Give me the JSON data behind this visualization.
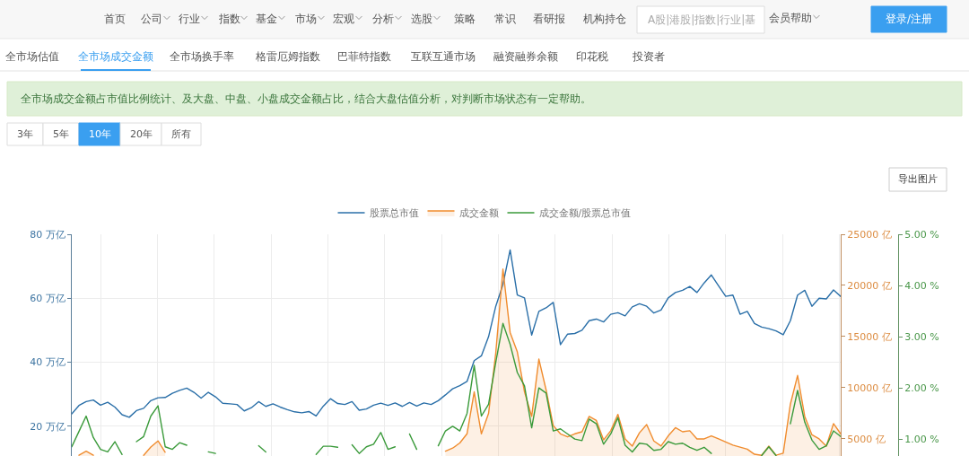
{
  "chart_data": {
    "type": "line",
    "subtitle": "全市场成交金额占市值比例统计、及大盘、中盘、小盘成交金额占比，结合大盘估值分析，对判断市场状态有一定帮助。",
    "annotations": [
      "首页",
      "公司",
      "行业",
      "指数",
      "基金",
      "市场",
      "宏观",
      "分析",
      "选股",
      "策略",
      "常识",
      "看研报",
      "机构持仓",
      "A股|港股|指数|行业|基",
      "会员帮助",
      "登录/注册",
      "全市场估值",
      "全市场成交金额",
      "全市场换手率",
      "格雷厄姆指数",
      "巴菲特指数",
      "互联互通市场",
      "融资融券余额",
      "印花税",
      "投资者",
      "3年",
      "5年",
      "10年",
      "20年",
      "所有",
      "导出图片"
    ],
    "categories": [
      null,
      null,
      null,
      null,
      null,
      null,
      null,
      null,
      null,
      null,
      null,
      null,
      null,
      null,
      null,
      null,
      null,
      null,
      null,
      null,
      null,
      null,
      null,
      null,
      null,
      null,
      null,
      null,
      null,
      null,
      null,
      null,
      null,
      null,
      null,
      null,
      null,
      null,
      null,
      null,
      null,
      null,
      null,
      null,
      null,
      null,
      null,
      null,
      null,
      null,
      null,
      null,
      null,
      null,
      null,
      null,
      null,
      null,
      null,
      null,
      null,
      null,
      null,
      null,
      null,
      null,
      null,
      null,
      null,
      null,
      null,
      null,
      null,
      null,
      null,
      null,
      null,
      null,
      null,
      null,
      null,
      null,
      null,
      null,
      null,
      null,
      null,
      null,
      null,
      null,
      null,
      null,
      null,
      null,
      null,
      null,
      null,
      null,
      null,
      null,
      null,
      null,
      null,
      null,
      null,
      null,
      null,
      null
    ],
    "series": [
      {
        "name": "股票总市值",
        "color": "#2a6fa8",
        "values": [
          23.9,
          26.5,
          27.7,
          28.2,
          26.6,
          27.5,
          26.0,
          23.6,
          22.8,
          24.9,
          25.6,
          28.0,
          28.9,
          29.0,
          30.3,
          31.2,
          31.9,
          30.6,
          28.8,
          30.6,
          29.2,
          27.2,
          27.0,
          26.8,
          24.8,
          25.8,
          27.7,
          26.2,
          27.0,
          26.0,
          25.2,
          24.5,
          24.2,
          24.6,
          23.2,
          26.3,
          28.6,
          27.1,
          26.8,
          27.7,
          25.0,
          25.4,
          26.6,
          27.2,
          26.5,
          27.3,
          26.2,
          27.4,
          26.3,
          27.3,
          26.8,
          28.0,
          29.8,
          31.7,
          32.7,
          34.0,
          40.5,
          42.0,
          48.0,
          57.5,
          64.3,
          75.1,
          61.0,
          60.1,
          48.5,
          55.9,
          57.0,
          58.7,
          45.5,
          48.8,
          49.0,
          50.0,
          53.0,
          53.5,
          52.6,
          55.0,
          55.5,
          54.5,
          57.3,
          58.3,
          57.5,
          55.4,
          56.3,
          60.1,
          61.8,
          62.5,
          63.7,
          61.8,
          64.8,
          67.3,
          63.9,
          60.6,
          61.0,
          55.0,
          55.9,
          52.1,
          51.0,
          50.5,
          49.8,
          48.6,
          53.0,
          61.0,
          62.5,
          57.5,
          60.0,
          59.8,
          62.6,
          60.6
        ]
      },
      {
        "name": "成交金额",
        "type": "area",
        "axis": "y2",
        "color": "#f08c2e",
        "values": [
          null,
          3400,
          3800,
          3400,
          null,
          null,
          null,
          null,
          null,
          null,
          3400,
          4200,
          4800,
          3700,
          null,
          null,
          null,
          null,
          null,
          null,
          null,
          null,
          null,
          null,
          null,
          null,
          null,
          null,
          null,
          null,
          null,
          null,
          null,
          null,
          null,
          null,
          null,
          null,
          null,
          null,
          null,
          null,
          null,
          null,
          null,
          null,
          null,
          null,
          null,
          null,
          null,
          null,
          3800,
          4100,
          4600,
          5500,
          9600,
          5500,
          7500,
          13400,
          21600,
          15400,
          13500,
          9600,
          7200,
          12800,
          9800,
          6300,
          5500,
          5200,
          5500,
          5700,
          7200,
          6800,
          4900,
          5800,
          7400,
          5000,
          4300,
          5600,
          6400,
          4800,
          4300,
          5300,
          6100,
          5700,
          5800,
          5000,
          5000,
          5300,
          5000,
          4700,
          4400,
          4200,
          4000,
          3500,
          3400,
          4300,
          3400,
          3600,
          8400,
          11200,
          7200,
          5400,
          5000,
          4300,
          6500,
          5500
        ]
      },
      {
        "name": "成交金额/股票总市值",
        "axis": "y3",
        "color": "#3a9a3a",
        "values": [
          0.85,
          1.15,
          1.45,
          1.03,
          0.8,
          0.75,
          0.95,
          0.7,
          null,
          0.95,
          1.05,
          1.45,
          1.65,
          0.85,
          0.8,
          0.93,
          0.88,
          null,
          null,
          0.75,
          0.72,
          null,
          null,
          null,
          null,
          null,
          0.87,
          0.75,
          null,
          null,
          null,
          null,
          null,
          null,
          0.7,
          0.86,
          0.86,
          0.84,
          null,
          0.89,
          0.72,
          0.85,
          0.9,
          1.13,
          0.8,
          0.85,
          null,
          1.1,
          0.8,
          null,
          null,
          0.87,
          1.16,
          1.25,
          1.16,
          1.5,
          2.44,
          1.45,
          1.68,
          2.5,
          3.26,
          2.85,
          2.3,
          2.04,
          1.22,
          2.0,
          1.9,
          1.16,
          1.2,
          1.1,
          1.0,
          0.97,
          1.39,
          1.3,
          0.9,
          1.1,
          1.42,
          0.88,
          0.75,
          0.92,
          0.9,
          0.78,
          0.8,
          0.95,
          0.9,
          0.92,
          0.84,
          0.78,
          0.84,
          0.72,
          null,
          null,
          null,
          null,
          null,
          null,
          0.68,
          0.85,
          0.68,
          null,
          1.3,
          1.95,
          1.33,
          0.98,
          0.8,
          0.87,
          1.16,
          1.05
        ]
      }
    ],
    "ylim": [
      10.7,
      80
    ],
    "yticks": [
      {
        "value": 20,
        "label": "20 万亿"
      },
      {
        "value": 40,
        "label": "40 万亿"
      },
      {
        "value": 60,
        "label": "60 万亿"
      },
      {
        "value": 80,
        "label": "80 万亿"
      }
    ],
    "y2lim": [
      3330,
      25000
    ],
    "y2ticks": [
      {
        "value": 5000,
        "label": "5000 亿"
      },
      {
        "value": 10000,
        "label": "10000 亿"
      },
      {
        "value": 15000,
        "label": "15000 亿"
      },
      {
        "value": 20000,
        "label": "20000 亿"
      },
      {
        "value": 25000,
        "label": "25000 亿"
      }
    ],
    "y3lim": [
      0.67,
      5
    ],
    "y3ticks": [
      {
        "value": 1,
        "label": "1.00 %"
      },
      {
        "value": 2,
        "label": "2.00 %"
      },
      {
        "value": 3,
        "label": "3.00 %"
      },
      {
        "value": 4,
        "label": "4.00 %"
      },
      {
        "value": 5,
        "label": "5.00 %"
      }
    ],
    "grid": true,
    "legend": "top",
    "tick_labels": "y"
  }
}
